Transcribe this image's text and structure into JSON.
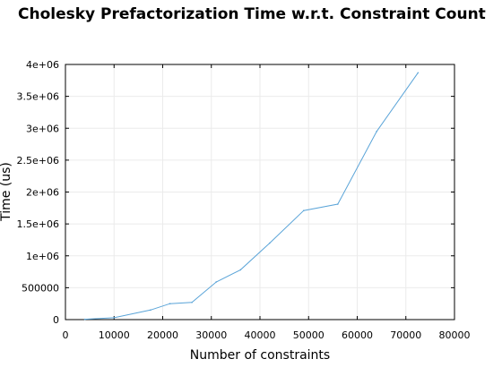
{
  "chart_data": {
    "type": "line",
    "title": "Cholesky Prefactorization Time w.r.t. Constraint Count",
    "xlabel": "Number of constraints",
    "ylabel": "Time (us)",
    "xlim": [
      0,
      80000
    ],
    "ylim": [
      0,
      4000000
    ],
    "xticks": [
      0,
      10000,
      20000,
      30000,
      40000,
      50000,
      60000,
      70000,
      80000
    ],
    "yticks": [
      0,
      500000,
      1000000,
      1500000,
      2000000,
      2500000,
      3000000,
      3500000,
      4000000
    ],
    "xtick_labels": [
      "0",
      "10000",
      "20000",
      "30000",
      "40000",
      "50000",
      "60000",
      "70000",
      "80000"
    ],
    "ytick_labels": [
      "0",
      "500000",
      "1e+06",
      "1.5e+06",
      "2e+06",
      "2.5e+06",
      "3e+06",
      "3.5e+06",
      "4e+06"
    ],
    "grid": true,
    "line_color": "#5aa4d8",
    "series": [
      {
        "x": [
          4000,
          10000,
          17500,
          21500,
          26000,
          31000,
          36000,
          42000,
          49000,
          56000,
          64000,
          72500
        ],
        "y": [
          5000,
          30000,
          150000,
          250000,
          270000,
          590000,
          780000,
          1200000,
          1710000,
          1810000,
          2950000,
          3870000
        ]
      }
    ]
  }
}
